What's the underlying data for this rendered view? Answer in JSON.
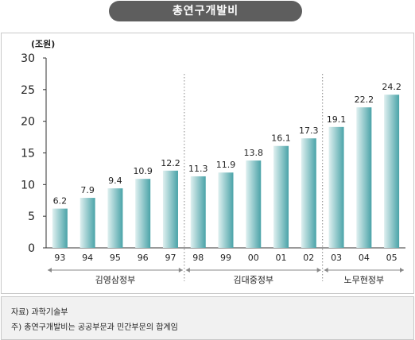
{
  "title": "총연구개발비",
  "chart_data": {
    "type": "bar",
    "unit_label": "(조원)",
    "categories": [
      "93",
      "94",
      "95",
      "96",
      "97",
      "98",
      "99",
      "00",
      "01",
      "02",
      "03",
      "04",
      "05"
    ],
    "values": [
      6.2,
      7.9,
      9.4,
      10.9,
      12.2,
      11.3,
      11.9,
      13.8,
      16.1,
      17.3,
      19.1,
      22.2,
      24.2
    ],
    "value_labels": [
      "6.2",
      "7.9",
      "9.4",
      "10.9",
      "12.2",
      "11.3",
      "11.9",
      "13.8",
      "16.1",
      "17.3",
      "19.1",
      "22.2",
      "24.2"
    ],
    "ylim": [
      0,
      30
    ],
    "yticks": [
      "0",
      "5",
      "10",
      "15",
      "20",
      "25",
      "30"
    ],
    "groups": [
      {
        "label": "김영삼정부",
        "start": 0,
        "end": 4
      },
      {
        "label": "김대중정부",
        "start": 5,
        "end": 9
      },
      {
        "label": "노무현정부",
        "start": 10,
        "end": 12
      }
    ],
    "bar_color_light": "#dff0f0",
    "bar_color_dark": "#4aa3a8"
  },
  "notes": {
    "source": "자료) 과학기술부",
    "footnote": "주) 총연구개발비는 공공부문과 민간부문의 합계임"
  }
}
